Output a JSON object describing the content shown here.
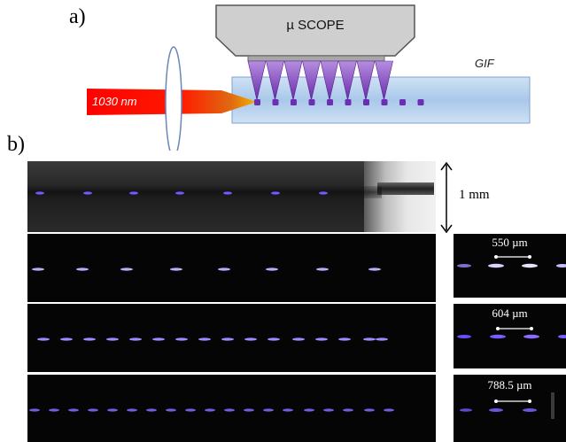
{
  "labels": {
    "panel_a": "a)",
    "panel_b": "b)"
  },
  "diagram": {
    "microscope_label": "µ SCOPE",
    "laser_label": "1030 nm",
    "fiber_label": "GIF",
    "focal_cones": 8,
    "dots": 9
  },
  "photos": {
    "scale_bar_label": "1 mm",
    "insets": [
      {
        "label": "550 µm"
      },
      {
        "label": "604 µm"
      },
      {
        "label": "788.5 µm"
      }
    ]
  },
  "colors": {
    "laser_red": "#ff0000",
    "laser_orange": "#f5a623",
    "cone_violet": "#8a3fc4",
    "dot_violet": "#6b2fb3",
    "fiber_blue": "#b9d4ee",
    "scope_gray": "#c8c8c8"
  }
}
